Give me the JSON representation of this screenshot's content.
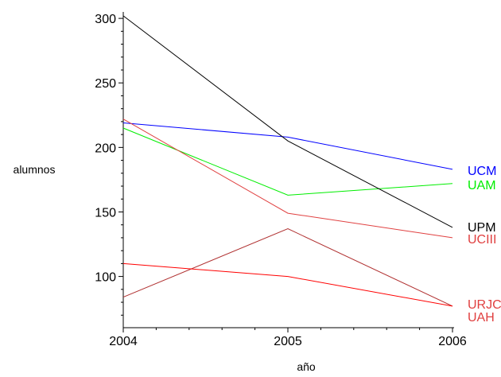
{
  "chart_data": {
    "type": "line",
    "title": "",
    "xlabel": "año",
    "ylabel": "alumnos",
    "x": [
      2004,
      2005,
      2006
    ],
    "xlim": [
      2004,
      2006.15
    ],
    "ylim": [
      64,
      305
    ],
    "xticks": [
      2004,
      2005,
      2006
    ],
    "yticks": [
      100,
      150,
      200,
      250,
      300
    ],
    "grid": false,
    "legend": "line-end labels",
    "series": [
      {
        "name": "UCM",
        "color": "#0000ff",
        "values": [
          219,
          208,
          183
        ]
      },
      {
        "name": "UAM",
        "color": "#00ee00",
        "values": [
          215,
          163,
          172
        ]
      },
      {
        "name": "UPM",
        "color": "#000000",
        "values": [
          302,
          205,
          138
        ]
      },
      {
        "name": "UCIII",
        "color": "#e04040",
        "values": [
          222,
          149,
          130
        ]
      },
      {
        "name": "URJC",
        "color": "#b03030",
        "values": [
          84,
          137,
          77
        ]
      },
      {
        "name": "UAH",
        "color": "#ff0000",
        "values": [
          110,
          100,
          77
        ]
      }
    ],
    "label_text": {
      "UCM": "UCM",
      "UAM": "UAM",
      "UPM": "UPM",
      "UCIII": "UCIII",
      "URJC": "URJC",
      "UAH": "UAH"
    },
    "label_colors": {
      "UCM": "#0000ff",
      "UAM": "#00ee00",
      "UPM": "#000000",
      "UCIII": "#e04040",
      "URJC": "#e04040",
      "UAH": "#e04040"
    }
  }
}
